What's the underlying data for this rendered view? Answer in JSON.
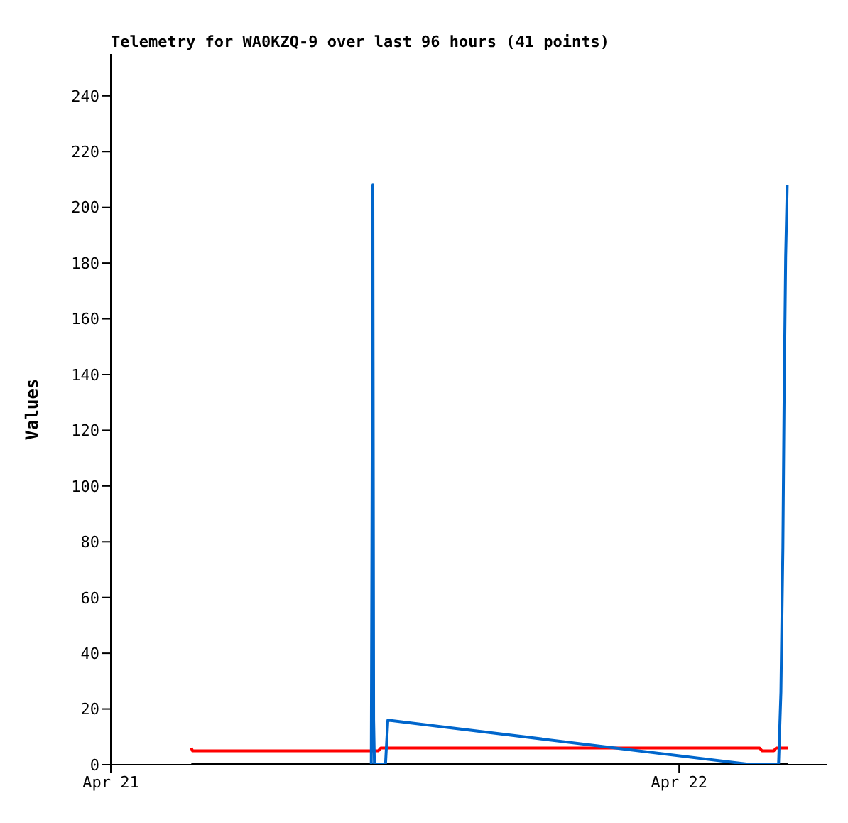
{
  "chart_data": {
    "type": "line",
    "title": "Telemetry for WA0KZQ-9 over last 96 hours (41 points)",
    "ylabel": "Values",
    "xlim": [
      "--04-21T00:00",
      "--04-22T06:14"
    ],
    "xticks": [
      {
        "value": "--04-21",
        "label": "Apr 21"
      },
      {
        "value": "--04-22",
        "label": "Apr 22"
      }
    ],
    "ylim": [
      0,
      255
    ],
    "yticks": [
      0,
      20,
      40,
      60,
      80,
      100,
      120,
      140,
      160,
      180,
      200,
      220,
      240
    ],
    "marker": "none",
    "line_style": "solid",
    "series": [
      {
        "color": "#000000",
        "x": [
          "--04-21T03:24",
          "--04-22T04:36"
        ],
        "values": [
          0,
          0
        ]
      },
      {
        "color": "#ff0000",
        "x": [
          "--04-21T03:24",
          "--04-21T03:27",
          "--04-21T11:18",
          "--04-21T11:24",
          "--04-22T03:24",
          "--04-22T03:30",
          "--04-22T04:00",
          "--04-22T04:06",
          "--04-22T04:36"
        ],
        "values": [
          6,
          5,
          5,
          6,
          6,
          5,
          5,
          6,
          6
        ]
      },
      {
        "color": "#0066cc",
        "x": [
          "--04-21T11:00",
          "--04-21T11:02",
          "--04-21T11:04",
          "--04-21T11:06",
          "--04-21T11:08",
          "--04-21T11:12",
          "--04-21T11:36",
          "--04-21T11:42",
          "--04-22T03:06",
          "--04-22T04:12",
          "--04-22T04:18",
          "--04-22T04:23",
          "--04-22T04:26",
          "--04-22T04:30",
          "--04-22T04:34"
        ],
        "values": [
          0,
          97,
          208,
          16,
          0,
          0,
          0,
          16,
          0,
          0,
          26,
          78,
          130,
          182,
          208
        ]
      }
    ]
  }
}
